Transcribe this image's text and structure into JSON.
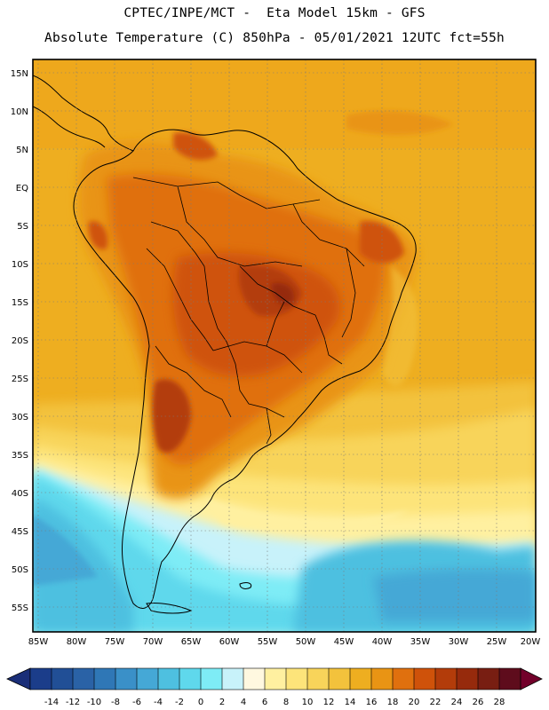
{
  "header": {
    "line1": "CPTEC/INPE/MCT -  Eta Model 15km - GFS",
    "line2": "Absolute Temperature (C) 850hPa - 05/01/2021 12UTC fct=55h"
  },
  "map": {
    "lat_labels": [
      "15N",
      "10N",
      "5N",
      "EQ",
      "5S",
      "10S",
      "15S",
      "20S",
      "25S",
      "30S",
      "35S",
      "40S",
      "45S",
      "50S",
      "55S"
    ],
    "lon_labels": [
      "85W",
      "80W",
      "75W",
      "70W",
      "65W",
      "60W",
      "55W",
      "50W",
      "45W",
      "40W",
      "35W",
      "30W",
      "25W",
      "20W"
    ]
  },
  "colorbar": {
    "ticks": [
      "-14",
      "-12",
      "-10",
      "-8",
      "-6",
      "-4",
      "-2",
      "0",
      "2",
      "4",
      "6",
      "8",
      "10",
      "12",
      "14",
      "16",
      "18",
      "20",
      "22",
      "24",
      "26",
      "28"
    ],
    "colors": [
      "#1b3d8a",
      "#214f96",
      "#2a62a6",
      "#2f77b6",
      "#3a90c8",
      "#45a8d6",
      "#4ec0e0",
      "#5fd8ec",
      "#7eecf6",
      "#c8f2fa",
      "#fff8e0",
      "#fff0a0",
      "#fde47a",
      "#f8d45a",
      "#f3c23c",
      "#eeae20",
      "#e99414",
      "#e0700e",
      "#cf520a",
      "#b33c0a",
      "#962a0c",
      "#781e12",
      "#5e0c1c"
    ],
    "under_color": "#1a2e78",
    "over_color": "#72002a"
  }
}
